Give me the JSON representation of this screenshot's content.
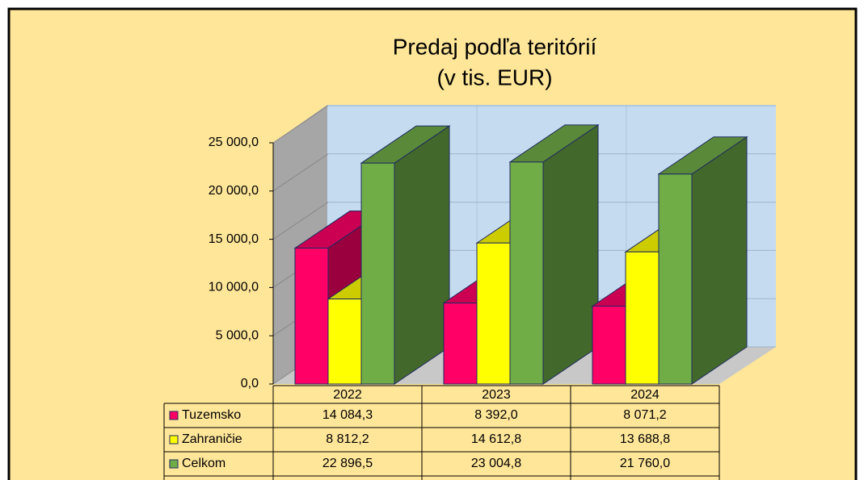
{
  "chart_data": {
    "type": "bar3d",
    "title": "Predaj podľa teritórií",
    "subtitle": "(v tis. EUR)",
    "categories": [
      "2022",
      "2023",
      "2024"
    ],
    "series": [
      {
        "name": "Tuzemsko",
        "color": "#ff0066",
        "values": [
          14084.3,
          8392.0,
          8071.2
        ],
        "value_labels": [
          "14 084,3",
          "8 392,0",
          "8 071,2"
        ]
      },
      {
        "name": "Zahraničie",
        "color": "#ffff00",
        "values": [
          8812.2,
          14612.8,
          13688.8
        ],
        "value_labels": [
          "8 812,2",
          "14 612,8",
          "13 688,8"
        ]
      },
      {
        "name": "Celkom",
        "color": "#70ad47",
        "values": [
          22896.5,
          23004.8,
          21760.0
        ],
        "value_labels": [
          "22 896,5",
          "23 004,8",
          "21 760,0"
        ]
      }
    ],
    "ylim": [
      0,
      25000
    ],
    "yticks": [
      {
        "value": 0,
        "label": "0,0"
      },
      {
        "value": 5000,
        "label": "5 000,0"
      },
      {
        "value": 10000,
        "label": "10 000,0"
      },
      {
        "value": 15000,
        "label": "15 000,0"
      },
      {
        "value": 20000,
        "label": "20 000,0"
      },
      {
        "value": 25000,
        "label": "25 000,0"
      }
    ],
    "grid": true
  }
}
